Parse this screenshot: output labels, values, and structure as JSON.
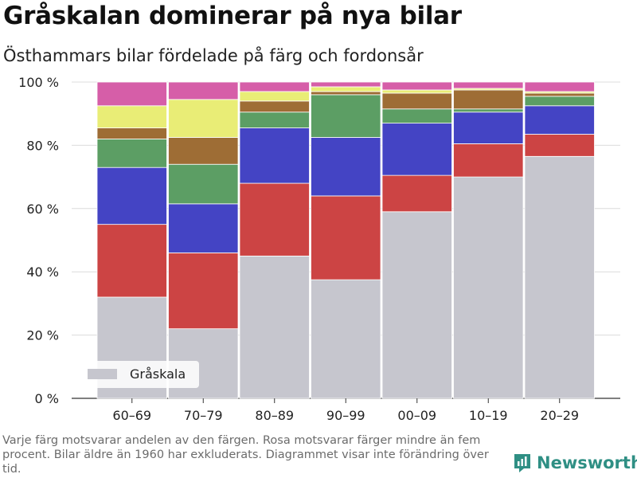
{
  "title": "Gråskalan dominerar på nya bilar",
  "subtitle": "Östhammars bilar fördelade på färg och fordonsår",
  "footnote": "Varje färg motsvarar andelen av den färgen. Rosa motsvarar färger mindre än fem procent. Bilar äldre än 1960 har exkluderats. Diagrammet visar inte förändring över tid.",
  "brand": {
    "name": "Newsworthy",
    "icon": "newsworthy-logo-icon",
    "color": "#2f8f84"
  },
  "chart_data": {
    "type": "bar",
    "stacked": true,
    "categories": [
      "60–69",
      "70–79",
      "80–89",
      "90–99",
      "00–09",
      "10–19",
      "20–29"
    ],
    "ylim": [
      0,
      100
    ],
    "yticks": [
      0,
      20,
      40,
      60,
      80,
      100
    ],
    "ytick_labels": [
      "0 %",
      "20 %",
      "40 %",
      "60 %",
      "80 %",
      "100 %"
    ],
    "grid": "horizontal",
    "legend_placement": "bottom-left",
    "legend": [
      {
        "label": "Gråskala",
        "color": "#c6c6ce"
      }
    ],
    "series": [
      {
        "color": "#c6c6ce",
        "values": [
          32,
          22,
          45,
          37.5,
          59,
          70,
          76.5
        ],
        "name": "Gråskala"
      },
      {
        "color": "#cc4444",
        "values": [
          23,
          24,
          23,
          26.5,
          11.5,
          10.5,
          7
        ]
      },
      {
        "color": "#4444c4",
        "values": [
          18,
          15.5,
          17.5,
          18.5,
          16.5,
          10,
          9
        ]
      },
      {
        "color": "#5c9e64",
        "values": [
          9,
          12.5,
          5,
          13.5,
          4.5,
          1,
          3
        ]
      },
      {
        "color": "#9e6d35",
        "values": [
          3.5,
          8.5,
          3.5,
          1,
          5,
          6,
          1
        ]
      },
      {
        "color": "#e9ed76",
        "values": [
          7,
          12,
          3,
          1.5,
          1,
          0.5,
          0.5
        ]
      },
      {
        "color": "#d65ea8",
        "values": [
          7.5,
          5.5,
          3,
          1.5,
          2.5,
          2,
          3
        ]
      }
    ]
  }
}
